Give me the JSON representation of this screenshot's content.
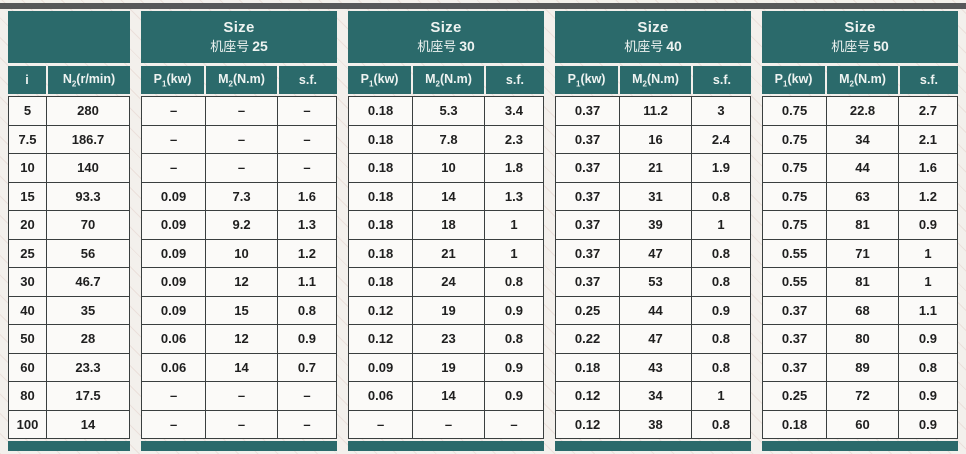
{
  "colors": {
    "teal": "#2b6a6b",
    "top_bar_gray": "#57585a",
    "cell_border": "#3a3f3f"
  },
  "index_headers": {
    "i": "i",
    "n2": {
      "pre": "N",
      "sub": "2",
      "post": "(r/min)"
    }
  },
  "size_col_headers": {
    "p1": {
      "pre": "P",
      "sub": "1",
      "post": "(kw)"
    },
    "m2": {
      "pre": "M",
      "sub": "2",
      "post": "(N.m)"
    },
    "sf": "s.f."
  },
  "size_blocks": [
    {
      "key": "s25",
      "title_en": "Size",
      "title_cn": "机座号",
      "title_num": "25"
    },
    {
      "key": "s30",
      "title_en": "Size",
      "title_cn": "机座号",
      "title_num": "30"
    },
    {
      "key": "s40",
      "title_en": "Size",
      "title_cn": "机座号",
      "title_num": "40"
    },
    {
      "key": "s50",
      "title_en": "Size",
      "title_cn": "机座号",
      "title_num": "50"
    }
  ],
  "rows": [
    {
      "i": "5",
      "n2": "280",
      "s25": [
        "–",
        "–",
        "–"
      ],
      "s30": [
        "0.18",
        "5.3",
        "3.4"
      ],
      "s40": [
        "0.37",
        "11.2",
        "3"
      ],
      "s50": [
        "0.75",
        "22.8",
        "2.7"
      ]
    },
    {
      "i": "7.5",
      "n2": "186.7",
      "s25": [
        "–",
        "–",
        "–"
      ],
      "s30": [
        "0.18",
        "7.8",
        "2.3"
      ],
      "s40": [
        "0.37",
        "16",
        "2.4"
      ],
      "s50": [
        "0.75",
        "34",
        "2.1"
      ]
    },
    {
      "i": "10",
      "n2": "140",
      "s25": [
        "–",
        "–",
        "–"
      ],
      "s30": [
        "0.18",
        "10",
        "1.8"
      ],
      "s40": [
        "0.37",
        "21",
        "1.9"
      ],
      "s50": [
        "0.75",
        "44",
        "1.6"
      ]
    },
    {
      "i": "15",
      "n2": "93.3",
      "s25": [
        "0.09",
        "7.3",
        "1.6"
      ],
      "s30": [
        "0.18",
        "14",
        "1.3"
      ],
      "s40": [
        "0.37",
        "31",
        "0.8"
      ],
      "s50": [
        "0.75",
        "63",
        "1.2"
      ]
    },
    {
      "i": "20",
      "n2": "70",
      "s25": [
        "0.09",
        "9.2",
        "1.3"
      ],
      "s30": [
        "0.18",
        "18",
        "1"
      ],
      "s40": [
        "0.37",
        "39",
        "1"
      ],
      "s50": [
        "0.75",
        "81",
        "0.9"
      ]
    },
    {
      "i": "25",
      "n2": "56",
      "s25": [
        "0.09",
        "10",
        "1.2"
      ],
      "s30": [
        "0.18",
        "21",
        "1"
      ],
      "s40": [
        "0.37",
        "47",
        "0.8"
      ],
      "s50": [
        "0.55",
        "71",
        "1"
      ]
    },
    {
      "i": "30",
      "n2": "46.7",
      "s25": [
        "0.09",
        "12",
        "1.1"
      ],
      "s30": [
        "0.18",
        "24",
        "0.8"
      ],
      "s40": [
        "0.37",
        "53",
        "0.8"
      ],
      "s50": [
        "0.55",
        "81",
        "1"
      ]
    },
    {
      "i": "40",
      "n2": "35",
      "s25": [
        "0.09",
        "15",
        "0.8"
      ],
      "s30": [
        "0.12",
        "19",
        "0.9"
      ],
      "s40": [
        "0.25",
        "44",
        "0.9"
      ],
      "s50": [
        "0.37",
        "68",
        "1.1"
      ]
    },
    {
      "i": "50",
      "n2": "28",
      "s25": [
        "0.06",
        "12",
        "0.9"
      ],
      "s30": [
        "0.12",
        "23",
        "0.8"
      ],
      "s40": [
        "0.22",
        "47",
        "0.8"
      ],
      "s50": [
        "0.37",
        "80",
        "0.9"
      ]
    },
    {
      "i": "60",
      "n2": "23.3",
      "s25": [
        "0.06",
        "14",
        "0.7"
      ],
      "s30": [
        "0.09",
        "19",
        "0.9"
      ],
      "s40": [
        "0.18",
        "43",
        "0.8"
      ],
      "s50": [
        "0.37",
        "89",
        "0.8"
      ]
    },
    {
      "i": "80",
      "n2": "17.5",
      "s25": [
        "–",
        "–",
        "–"
      ],
      "s30": [
        "0.06",
        "14",
        "0.9"
      ],
      "s40": [
        "0.12",
        "34",
        "1"
      ],
      "s50": [
        "0.25",
        "72",
        "0.9"
      ]
    },
    {
      "i": "100",
      "n2": "14",
      "s25": [
        "–",
        "–",
        "–"
      ],
      "s30": [
        "–",
        "–",
        "–"
      ],
      "s40": [
        "0.12",
        "38",
        "0.8"
      ],
      "s50": [
        "0.18",
        "60",
        "0.9"
      ]
    }
  ]
}
